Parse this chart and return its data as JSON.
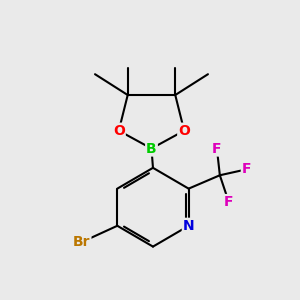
{
  "bg_color": "#eaeaea",
  "atom_colors": {
    "B": "#00cc00",
    "O": "#ff0000",
    "N": "#0000dd",
    "F": "#dd00bb",
    "Br": "#bb7700",
    "C": "#000000"
  },
  "bond_color": "#000000",
  "bond_width": 1.5,
  "font_size_atom": 10,
  "figsize": [
    3.0,
    3.0
  ],
  "dpi": 100
}
